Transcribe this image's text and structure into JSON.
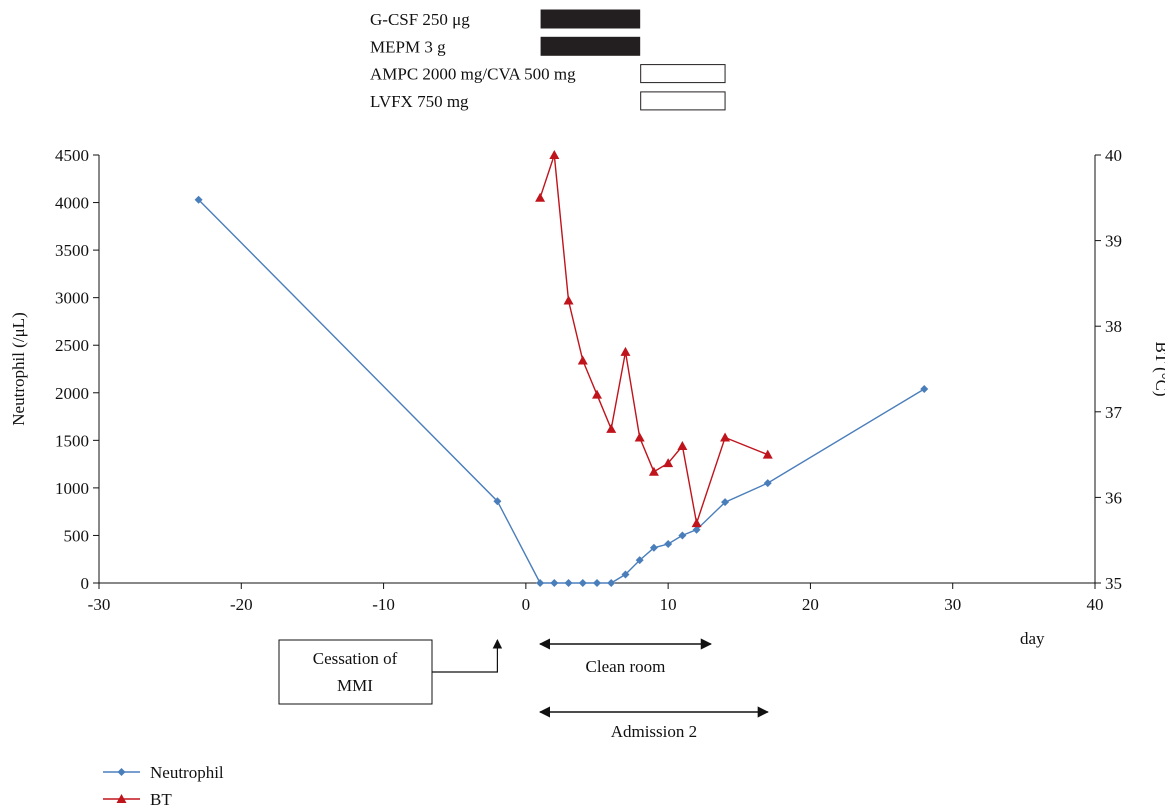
{
  "chart_data": {
    "type": "line",
    "x_axis": {
      "label": "day",
      "range": [
        -30,
        40
      ],
      "ticks": [
        -30,
        -20,
        -10,
        0,
        10,
        20,
        30,
        40
      ]
    },
    "y_axis_left": {
      "label": "Neutrophil (/μL)",
      "range": [
        0,
        4500
      ],
      "ticks": [
        0,
        500,
        1000,
        1500,
        2000,
        2500,
        3000,
        3500,
        4000,
        4500
      ]
    },
    "y_axis_right": {
      "label": "BT (°C)",
      "range": [
        35,
        40
      ],
      "ticks": [
        35,
        36,
        37,
        38,
        39,
        40
      ]
    },
    "series": [
      {
        "name": "Neutrophil",
        "axis": "left",
        "color": "#4a7ebb",
        "marker": "diamond",
        "points": [
          [
            -23,
            4030
          ],
          [
            -2,
            860
          ],
          [
            1,
            0
          ],
          [
            2,
            0
          ],
          [
            3,
            0
          ],
          [
            4,
            0
          ],
          [
            5,
            0
          ],
          [
            6,
            0
          ],
          [
            7,
            90
          ],
          [
            8,
            240
          ],
          [
            9,
            370
          ],
          [
            10,
            410
          ],
          [
            11,
            500
          ],
          [
            12,
            560
          ],
          [
            14,
            850
          ],
          [
            17,
            1050
          ],
          [
            28,
            2040
          ]
        ]
      },
      {
        "name": "BT",
        "axis": "right",
        "color": "#c0141c",
        "marker": "triangle",
        "points": [
          [
            1,
            39.5
          ],
          [
            2,
            40.0
          ],
          [
            3,
            38.3
          ],
          [
            4,
            37.6
          ],
          [
            5,
            37.2
          ],
          [
            6,
            36.8
          ],
          [
            7,
            37.7
          ],
          [
            8,
            36.7
          ],
          [
            9,
            36.3
          ],
          [
            10,
            36.4
          ],
          [
            11,
            36.6
          ],
          [
            12,
            35.7
          ],
          [
            14,
            36.7
          ],
          [
            17,
            36.5
          ]
        ]
      }
    ],
    "treatments": [
      {
        "label": "G-CSF 250 μg",
        "start": 1,
        "end": 8,
        "fill": "#231f20"
      },
      {
        "label": "MEPM 3 g",
        "start": 1,
        "end": 8,
        "fill": "#231f20"
      },
      {
        "label": "AMPC 2000 mg/CVA 500 mg",
        "start": 8,
        "end": 14,
        "fill": "#ffffff"
      },
      {
        "label": "LVFX 750 mg",
        "start": 8,
        "end": 14,
        "fill": "#ffffff"
      }
    ],
    "annotations": [
      {
        "label": "Cessation of MMI",
        "line1": "Cessation of",
        "line2": "MMI",
        "day": -2
      },
      {
        "label": "Clean room",
        "start": 1,
        "end": 13
      },
      {
        "label": "Admission 2",
        "start": 1,
        "end": 17
      }
    ],
    "legend": [
      "Neutrophil",
      "BT"
    ],
    "legend_position": "bottom-left",
    "grid": false
  }
}
